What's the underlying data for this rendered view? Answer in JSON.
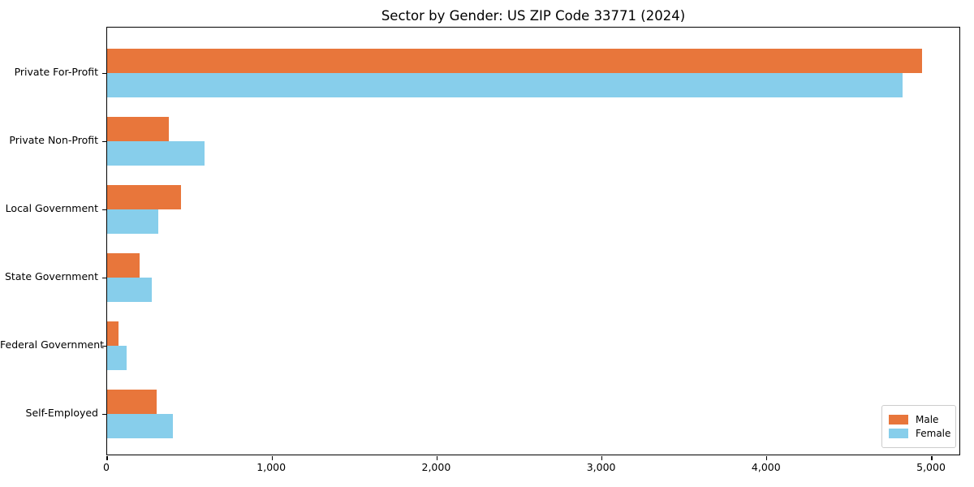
{
  "chart_data": {
    "type": "bar",
    "orientation": "horizontal",
    "title": "Sector by Gender: US ZIP Code 33771 (2024)",
    "categories": [
      "Private For-Profit",
      "Private Non-Profit",
      "Local Government",
      "State Government",
      "Federal Government",
      "Self-Employed"
    ],
    "series": [
      {
        "name": "Male",
        "color": "#e8763b",
        "values": [
          4940,
          375,
          450,
          195,
          70,
          300
        ]
      },
      {
        "name": "Female",
        "color": "#87ceeb",
        "values": [
          4825,
          590,
          310,
          270,
          120,
          400
        ]
      }
    ],
    "xlabel": "",
    "ylabel": "",
    "xlim": [
      0,
      5177
    ],
    "xticks": [
      0,
      1000,
      2000,
      3000,
      4000,
      5000
    ],
    "xtick_labels": [
      "0",
      "1,000",
      "2,000",
      "3,000",
      "4,000",
      "5,000"
    ],
    "grid": false,
    "legend_position": "lower right"
  },
  "legend": {
    "items": [
      {
        "label": "Male",
        "color": "#e8763b"
      },
      {
        "label": "Female",
        "color": "#87ceeb"
      }
    ]
  },
  "colors": {
    "axis": "#000000",
    "legend_border": "#cccccc",
    "background": "#ffffff"
  }
}
